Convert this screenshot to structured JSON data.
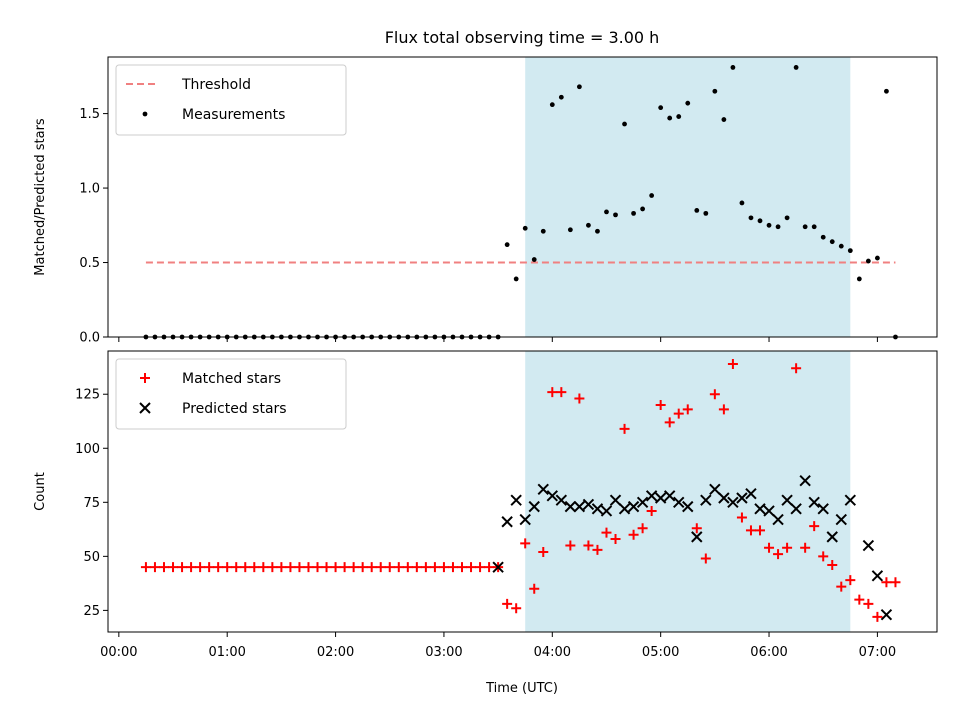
{
  "figure": {
    "title": "Flux total observing time = 3.00 h",
    "xlabel": "Time (UTC)",
    "x_tick_labels": [
      "00:00",
      "01:00",
      "02:00",
      "03:00",
      "04:00",
      "05:00",
      "06:00",
      "07:00"
    ],
    "shaded_span": {
      "start": "03:45",
      "end": "06:45",
      "color": "#add8e6"
    }
  },
  "chart_data": [
    {
      "type": "scatter",
      "title": "Flux total observing time = 3.00 h",
      "xlabel": "",
      "ylabel": "Matched/Predicted stars",
      "xlim": [
        "-00:06",
        "07:33"
      ],
      "ylim": [
        0,
        1.88
      ],
      "y_ticks": [
        "0.0",
        "0.5",
        "1.0",
        "1.5"
      ],
      "legend_position": "upper-left",
      "threshold": {
        "name": "Threshold",
        "value": 0.5,
        "x_start": "00:15",
        "x_end": "07:10",
        "color": "#f08080"
      },
      "series": [
        {
          "name": "Measurements",
          "color": "#000000",
          "marker": "dot",
          "points": [
            [
              "00:15",
              0
            ],
            [
              "00:20",
              0
            ],
            [
              "00:25",
              0
            ],
            [
              "00:30",
              0
            ],
            [
              "00:35",
              0
            ],
            [
              "00:40",
              0
            ],
            [
              "00:45",
              0
            ],
            [
              "00:50",
              0
            ],
            [
              "00:55",
              0
            ],
            [
              "01:00",
              0
            ],
            [
              "01:05",
              0
            ],
            [
              "01:10",
              0
            ],
            [
              "01:15",
              0
            ],
            [
              "01:20",
              0
            ],
            [
              "01:25",
              0
            ],
            [
              "01:30",
              0
            ],
            [
              "01:35",
              0
            ],
            [
              "01:40",
              0
            ],
            [
              "01:45",
              0
            ],
            [
              "01:50",
              0
            ],
            [
              "01:55",
              0
            ],
            [
              "02:00",
              0
            ],
            [
              "02:05",
              0
            ],
            [
              "02:10",
              0
            ],
            [
              "02:15",
              0
            ],
            [
              "02:20",
              0
            ],
            [
              "02:25",
              0
            ],
            [
              "02:30",
              0
            ],
            [
              "02:35",
              0
            ],
            [
              "02:40",
              0
            ],
            [
              "02:45",
              0
            ],
            [
              "02:50",
              0
            ],
            [
              "02:55",
              0
            ],
            [
              "03:00",
              0
            ],
            [
              "03:05",
              0
            ],
            [
              "03:10",
              0
            ],
            [
              "03:15",
              0
            ],
            [
              "03:20",
              0
            ],
            [
              "03:25",
              0
            ],
            [
              "03:30",
              0
            ],
            [
              "03:35",
              0.62
            ],
            [
              "03:40",
              0.39
            ],
            [
              "03:45",
              0.73
            ],
            [
              "03:50",
              0.52
            ],
            [
              "03:55",
              0.71
            ],
            [
              "04:00",
              1.56
            ],
            [
              "04:05",
              1.61
            ],
            [
              "04:10",
              0.72
            ],
            [
              "04:15",
              1.68
            ],
            [
              "04:20",
              0.75
            ],
            [
              "04:25",
              0.71
            ],
            [
              "04:30",
              0.84
            ],
            [
              "04:35",
              0.82
            ],
            [
              "04:40",
              1.43
            ],
            [
              "04:45",
              0.83
            ],
            [
              "04:50",
              0.86
            ],
            [
              "04:55",
              0.95
            ],
            [
              "05:00",
              1.54
            ],
            [
              "05:05",
              1.47
            ],
            [
              "05:10",
              1.48
            ],
            [
              "05:15",
              1.57
            ],
            [
              "05:20",
              0.85
            ],
            [
              "05:25",
              0.83
            ],
            [
              "05:30",
              1.65
            ],
            [
              "05:35",
              1.46
            ],
            [
              "05:40",
              1.81
            ],
            [
              "05:45",
              0.9
            ],
            [
              "05:50",
              0.8
            ],
            [
              "05:55",
              0.78
            ],
            [
              "06:00",
              0.75
            ],
            [
              "06:05",
              0.74
            ],
            [
              "06:10",
              0.8
            ],
            [
              "06:15",
              1.81
            ],
            [
              "06:20",
              0.74
            ],
            [
              "06:25",
              0.74
            ],
            [
              "06:30",
              0.67
            ],
            [
              "06:35",
              0.64
            ],
            [
              "06:40",
              0.61
            ],
            [
              "06:45",
              0.58
            ],
            [
              "06:50",
              0.39
            ],
            [
              "06:55",
              0.51
            ],
            [
              "07:00",
              0.53
            ],
            [
              "07:05",
              1.65
            ],
            [
              "07:10",
              0
            ]
          ]
        }
      ]
    },
    {
      "type": "scatter",
      "xlabel": "Time (UTC)",
      "ylabel": "Count",
      "xlim": [
        "-00:06",
        "07:33"
      ],
      "ylim": [
        15,
        145
      ],
      "y_ticks": [
        "25",
        "50",
        "75",
        "100",
        "125"
      ],
      "legend_position": "upper-left",
      "series": [
        {
          "name": "Matched stars",
          "color": "#ff0000",
          "marker": "plus",
          "points": [
            [
              "00:15",
              45
            ],
            [
              "00:20",
              45
            ],
            [
              "00:25",
              45
            ],
            [
              "00:30",
              45
            ],
            [
              "00:35",
              45
            ],
            [
              "00:40",
              45
            ],
            [
              "00:45",
              45
            ],
            [
              "00:50",
              45
            ],
            [
              "00:55",
              45
            ],
            [
              "01:00",
              45
            ],
            [
              "01:05",
              45
            ],
            [
              "01:10",
              45
            ],
            [
              "01:15",
              45
            ],
            [
              "01:20",
              45
            ],
            [
              "01:25",
              45
            ],
            [
              "01:30",
              45
            ],
            [
              "01:35",
              45
            ],
            [
              "01:40",
              45
            ],
            [
              "01:45",
              45
            ],
            [
              "01:50",
              45
            ],
            [
              "01:55",
              45
            ],
            [
              "02:00",
              45
            ],
            [
              "02:05",
              45
            ],
            [
              "02:10",
              45
            ],
            [
              "02:15",
              45
            ],
            [
              "02:20",
              45
            ],
            [
              "02:25",
              45
            ],
            [
              "02:30",
              45
            ],
            [
              "02:35",
              45
            ],
            [
              "02:40",
              45
            ],
            [
              "02:45",
              45
            ],
            [
              "02:50",
              45
            ],
            [
              "02:55",
              45
            ],
            [
              "03:00",
              45
            ],
            [
              "03:05",
              45
            ],
            [
              "03:10",
              45
            ],
            [
              "03:15",
              45
            ],
            [
              "03:20",
              45
            ],
            [
              "03:25",
              45
            ],
            [
              "03:30",
              45
            ],
            [
              "03:35",
              28
            ],
            [
              "03:40",
              26
            ],
            [
              "03:45",
              56
            ],
            [
              "03:50",
              35
            ],
            [
              "03:55",
              52
            ],
            [
              "04:00",
              126
            ],
            [
              "04:05",
              126
            ],
            [
              "04:10",
              55
            ],
            [
              "04:15",
              123
            ],
            [
              "04:20",
              55
            ],
            [
              "04:25",
              53
            ],
            [
              "04:30",
              61
            ],
            [
              "04:35",
              58
            ],
            [
              "04:40",
              109
            ],
            [
              "04:45",
              60
            ],
            [
              "04:50",
              63
            ],
            [
              "04:55",
              71
            ],
            [
              "05:00",
              120
            ],
            [
              "05:05",
              112
            ],
            [
              "05:10",
              116
            ],
            [
              "05:15",
              118
            ],
            [
              "05:20",
              63
            ],
            [
              "05:25",
              49
            ],
            [
              "05:30",
              125
            ],
            [
              "05:35",
              118
            ],
            [
              "05:40",
              139
            ],
            [
              "05:45",
              68
            ],
            [
              "05:50",
              62
            ],
            [
              "05:55",
              62
            ],
            [
              "06:00",
              54
            ],
            [
              "06:05",
              51
            ],
            [
              "06:10",
              54
            ],
            [
              "06:15",
              137
            ],
            [
              "06:20",
              54
            ],
            [
              "06:25",
              64
            ],
            [
              "06:30",
              50
            ],
            [
              "06:35",
              46
            ],
            [
              "06:40",
              36
            ],
            [
              "06:45",
              39
            ],
            [
              "06:50",
              30
            ],
            [
              "06:55",
              28
            ],
            [
              "07:00",
              22
            ],
            [
              "07:05",
              38
            ],
            [
              "07:10",
              38
            ]
          ]
        },
        {
          "name": "Predicted stars",
          "color": "#000000",
          "marker": "cross",
          "points": [
            [
              "03:30",
              45
            ],
            [
              "03:35",
              66
            ],
            [
              "03:40",
              76
            ],
            [
              "03:45",
              67
            ],
            [
              "03:50",
              73
            ],
            [
              "03:55",
              81
            ],
            [
              "04:00",
              78
            ],
            [
              "04:05",
              76
            ],
            [
              "04:10",
              73
            ],
            [
              "04:15",
              73
            ],
            [
              "04:20",
              74
            ],
            [
              "04:25",
              72
            ],
            [
              "04:30",
              71
            ],
            [
              "04:35",
              76
            ],
            [
              "04:40",
              72
            ],
            [
              "04:45",
              73
            ],
            [
              "04:50",
              75
            ],
            [
              "04:55",
              78
            ],
            [
              "05:00",
              77
            ],
            [
              "05:05",
              78
            ],
            [
              "05:10",
              75
            ],
            [
              "05:15",
              73
            ],
            [
              "05:20",
              59
            ],
            [
              "05:25",
              76
            ],
            [
              "05:30",
              81
            ],
            [
              "05:35",
              77
            ],
            [
              "05:40",
              75
            ],
            [
              "05:45",
              77
            ],
            [
              "05:50",
              79
            ],
            [
              "05:55",
              72
            ],
            [
              "06:00",
              71
            ],
            [
              "06:05",
              67
            ],
            [
              "06:10",
              76
            ],
            [
              "06:15",
              72
            ],
            [
              "06:20",
              85
            ],
            [
              "06:25",
              75
            ],
            [
              "06:30",
              72
            ],
            [
              "06:35",
              59
            ],
            [
              "06:40",
              67
            ],
            [
              "06:45",
              76
            ],
            [
              "06:55",
              55
            ],
            [
              "07:00",
              41
            ],
            [
              "07:05",
              23
            ]
          ]
        }
      ]
    }
  ]
}
